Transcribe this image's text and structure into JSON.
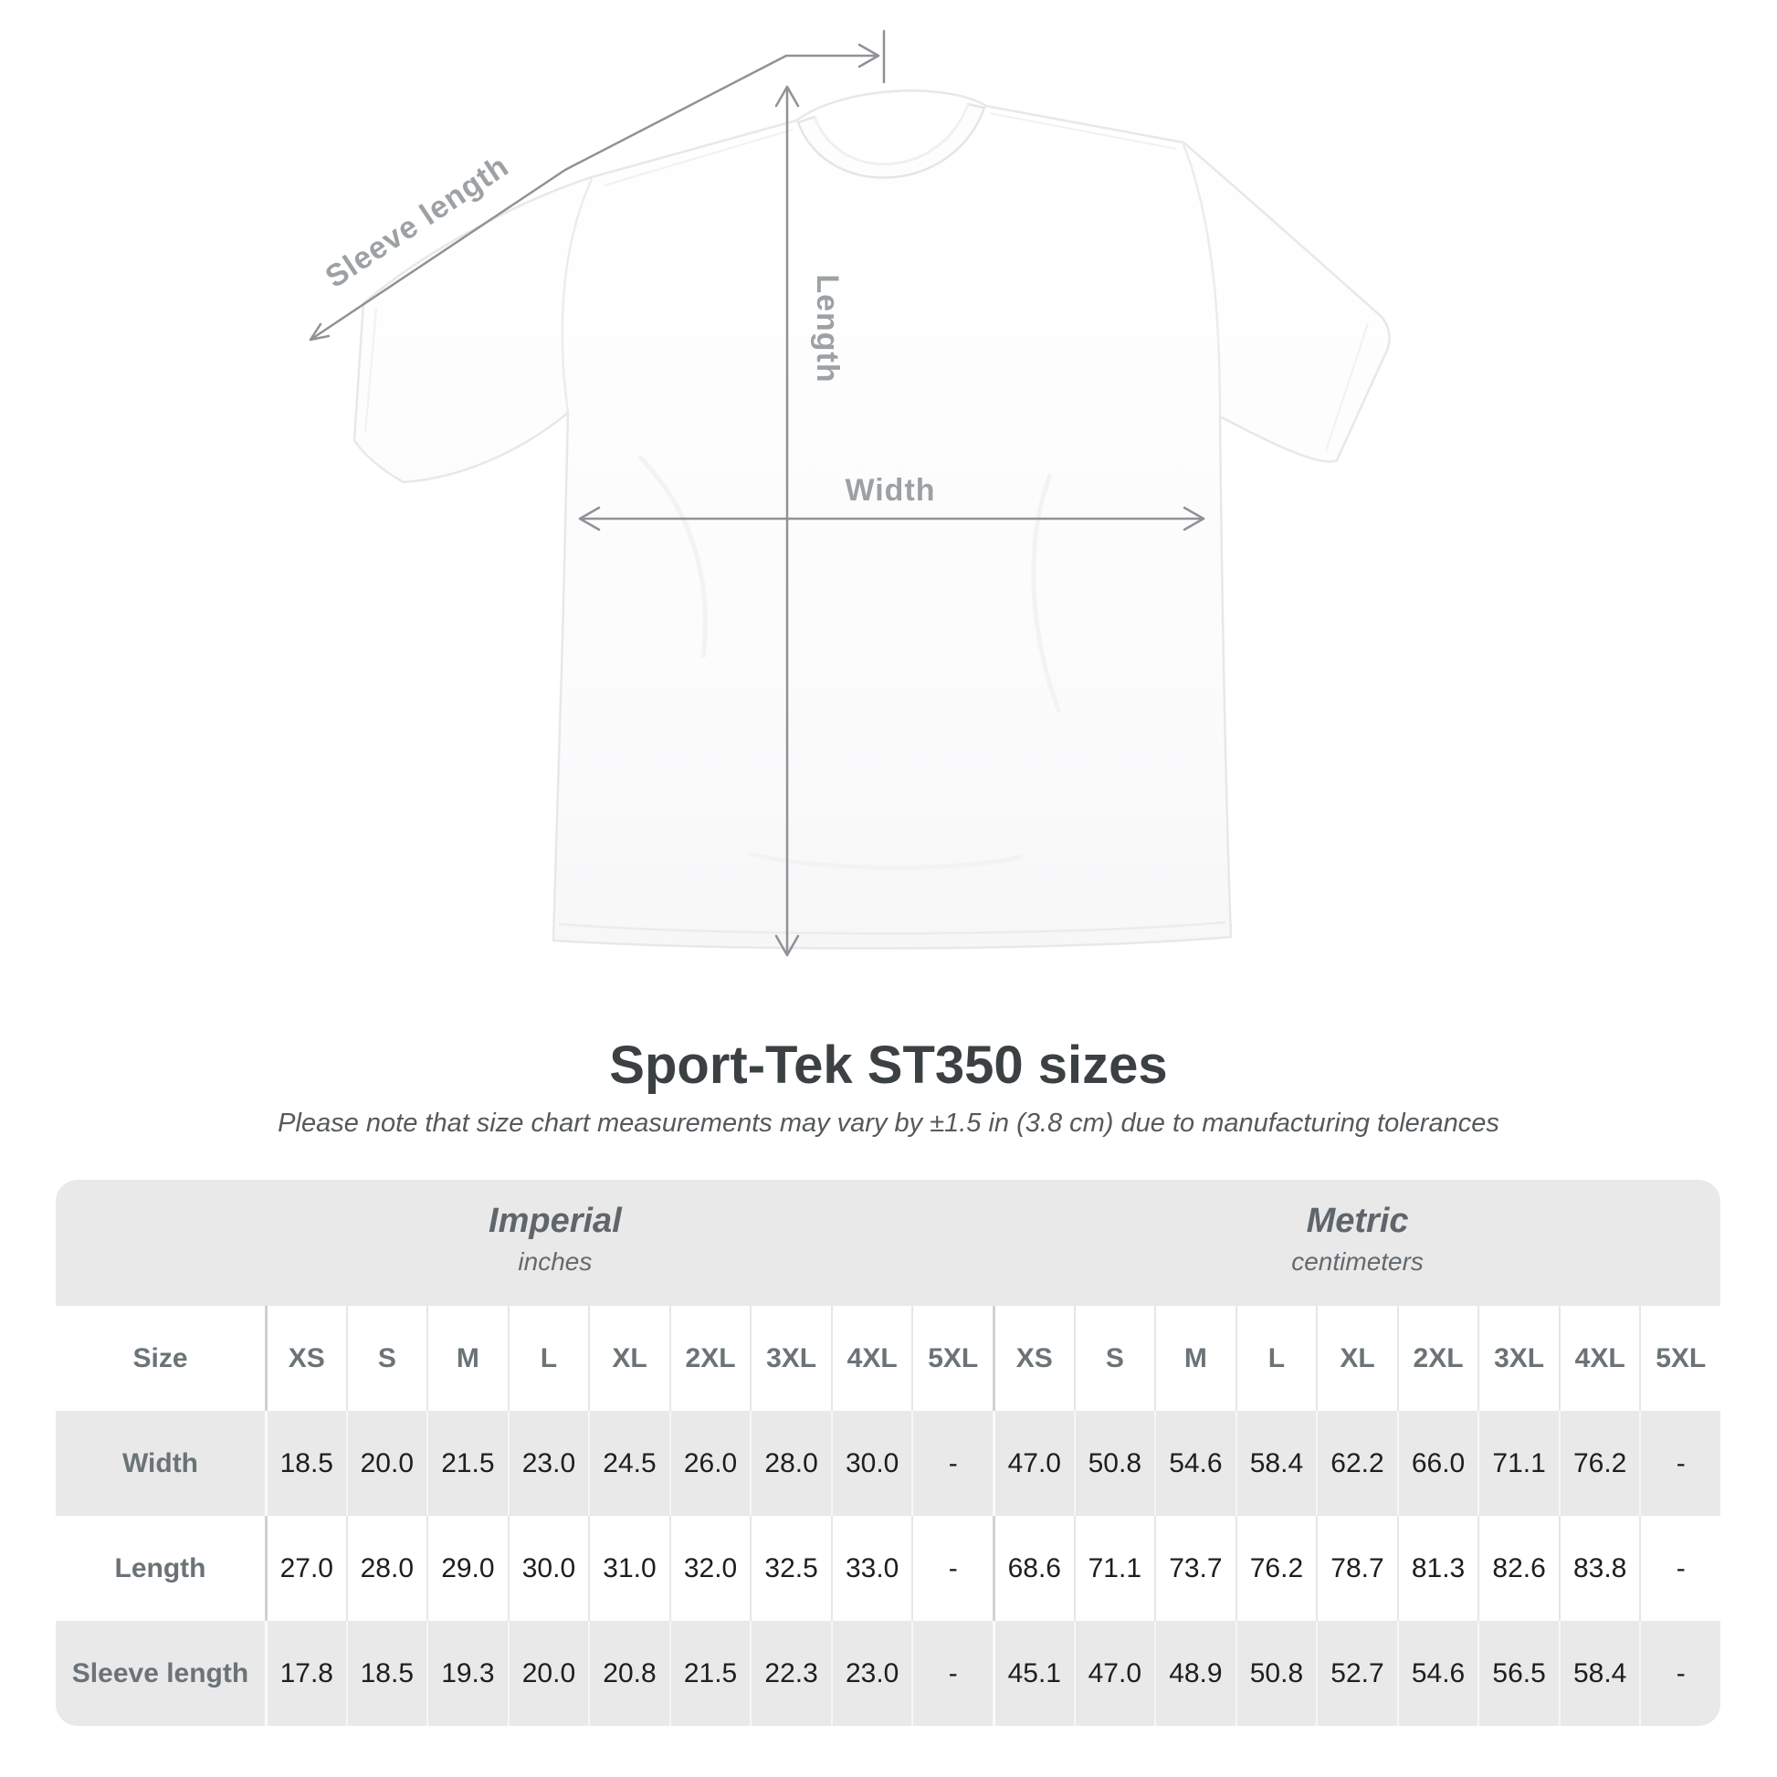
{
  "figure": {
    "labels": {
      "sleeve_length": "Sleeve length",
      "length": "Length",
      "width": "Width"
    }
  },
  "title": "Sport-Tek ST350 sizes",
  "subtitle": "Please note that size chart measurements may vary by ±1.5 in (3.8 cm) due to manufacturing tolerances",
  "table": {
    "size_label": "Size",
    "sizes": [
      "XS",
      "S",
      "M",
      "L",
      "XL",
      "2XL",
      "3XL",
      "4XL",
      "5XL"
    ],
    "groups": [
      {
        "name": "Imperial",
        "unit": "inches"
      },
      {
        "name": "Metric",
        "unit": "centimeters"
      }
    ],
    "rows": [
      {
        "label": "Width",
        "imperial": [
          "18.5",
          "20.0",
          "21.5",
          "23.0",
          "24.5",
          "26.0",
          "28.0",
          "30.0",
          "-"
        ],
        "metric": [
          "47.0",
          "50.8",
          "54.6",
          "58.4",
          "62.2",
          "66.0",
          "71.1",
          "76.2",
          "-"
        ]
      },
      {
        "label": "Length",
        "imperial": [
          "27.0",
          "28.0",
          "29.0",
          "30.0",
          "31.0",
          "32.0",
          "32.5",
          "33.0",
          "-"
        ],
        "metric": [
          "68.6",
          "71.1",
          "73.7",
          "76.2",
          "78.7",
          "81.3",
          "82.6",
          "83.8",
          "-"
        ]
      },
      {
        "label": "Sleeve length",
        "imperial": [
          "17.8",
          "18.5",
          "19.3",
          "20.0",
          "20.8",
          "21.5",
          "22.3",
          "23.0",
          "-"
        ],
        "metric": [
          "45.1",
          "47.0",
          "48.9",
          "50.8",
          "52.7",
          "54.6",
          "56.5",
          "58.4",
          "-"
        ]
      }
    ]
  },
  "colors": {
    "band_gray": "#e9e9ea",
    "measure_gray": "#8f9296",
    "label_gray": "#9da1a4",
    "title_dark": "#3b4043",
    "value_black": "#1e1e1e"
  },
  "chart_data": {
    "type": "table",
    "title": "Sport-Tek ST350 sizes",
    "note": "Please note that size chart measurements may vary by ±1.5 in (3.8 cm) due to manufacturing tolerances",
    "columns": [
      "XS",
      "S",
      "M",
      "L",
      "XL",
      "2XL",
      "3XL",
      "4XL",
      "5XL"
    ],
    "units": {
      "imperial": "inches",
      "metric": "centimeters"
    },
    "rows": [
      {
        "measurement": "Width",
        "imperial": [
          18.5,
          20.0,
          21.5,
          23.0,
          24.5,
          26.0,
          28.0,
          30.0,
          null
        ],
        "metric": [
          47.0,
          50.8,
          54.6,
          58.4,
          62.2,
          66.0,
          71.1,
          76.2,
          null
        ]
      },
      {
        "measurement": "Length",
        "imperial": [
          27.0,
          28.0,
          29.0,
          30.0,
          31.0,
          32.0,
          32.5,
          33.0,
          null
        ],
        "metric": [
          68.6,
          71.1,
          73.7,
          76.2,
          78.7,
          81.3,
          82.6,
          83.8,
          null
        ]
      },
      {
        "measurement": "Sleeve length",
        "imperial": [
          17.8,
          18.5,
          19.3,
          20.0,
          20.8,
          21.5,
          22.3,
          23.0,
          null
        ],
        "metric": [
          45.1,
          47.0,
          48.9,
          50.8,
          52.7,
          54.6,
          56.5,
          58.4,
          null
        ]
      }
    ]
  }
}
